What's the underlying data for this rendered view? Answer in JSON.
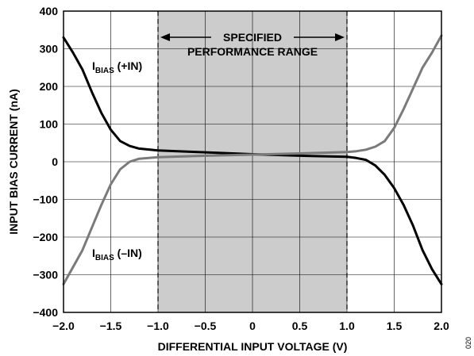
{
  "chart_data": {
    "type": "line",
    "title": "",
    "xlabel": "DIFFERENTIAL INPUT VOLTAGE (V)",
    "ylabel": "INPUT BIAS CURRENT (nA)",
    "xlim": [
      -2.0,
      2.0
    ],
    "ylim": [
      -400,
      400
    ],
    "xticks": [
      -2.0,
      -1.5,
      -1.0,
      -0.5,
      0,
      0.5,
      1.0,
      1.5,
      2.0
    ],
    "xtick_labels": [
      "−2.0",
      "−1.5",
      "−1.0",
      "−0.5",
      "0",
      "0.5",
      "1.0",
      "1.5",
      "2.0"
    ],
    "yticks": [
      -400,
      -300,
      -200,
      -100,
      0,
      100,
      200,
      300,
      400
    ],
    "ytick_labels": [
      "−400",
      "−300",
      "−200",
      "−100",
      "0",
      "100",
      "200",
      "300",
      "400"
    ],
    "grid": true,
    "shaded_region": {
      "x": [
        -1.0,
        1.0
      ],
      "color": "#cccccc",
      "label_line1": "SPECIFIED",
      "label_line2": "PERFORMANCE RANGE"
    },
    "series": [
      {
        "name": "IBIAS (+IN)",
        "color": "#000000",
        "x": [
          -2.0,
          -1.9,
          -1.8,
          -1.7,
          -1.6,
          -1.5,
          -1.4,
          -1.3,
          -1.2,
          -1.0,
          -0.5,
          0,
          0.5,
          1.0,
          1.1,
          1.2,
          1.3,
          1.4,
          1.5,
          1.6,
          1.7,
          1.8,
          1.9,
          2.0
        ],
        "y": [
          330,
          290,
          245,
          185,
          130,
          85,
          55,
          42,
          35,
          30,
          25,
          20,
          16,
          13,
          10,
          5,
          -10,
          -35,
          -70,
          -115,
          -170,
          -235,
          -285,
          -325
        ]
      },
      {
        "name": "IBIAS (−IN)",
        "color": "#7a7a7a",
        "x": [
          -2.0,
          -1.9,
          -1.8,
          -1.7,
          -1.6,
          -1.5,
          -1.4,
          -1.3,
          -1.2,
          -1.0,
          -0.5,
          0,
          0.5,
          1.0,
          1.1,
          1.2,
          1.3,
          1.4,
          1.5,
          1.6,
          1.7,
          1.8,
          1.9,
          2.0
        ],
        "y": [
          -325,
          -280,
          -235,
          -175,
          -115,
          -60,
          -20,
          0,
          8,
          12,
          16,
          19,
          22,
          26,
          28,
          32,
          40,
          55,
          90,
          140,
          195,
          250,
          290,
          335
        ]
      }
    ],
    "annotations": [
      {
        "main": "I",
        "sub": "BIAS",
        "rest": " (+IN)"
      },
      {
        "main": "I",
        "sub": "BIAS",
        "rest": " (–IN)"
      }
    ],
    "figure_id": "020"
  }
}
